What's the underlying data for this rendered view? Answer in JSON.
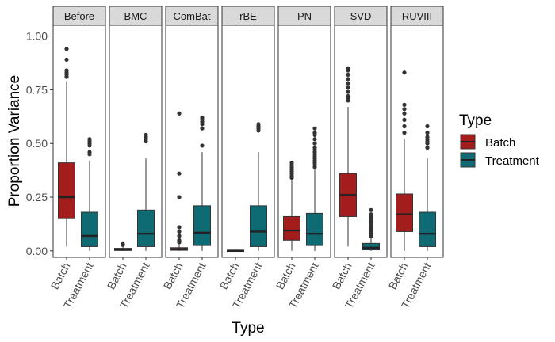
{
  "chart_data": {
    "type": "boxplot",
    "xlabel": "Type",
    "ylabel": "Proportion Variance",
    "ylim": [
      -0.03,
      1.05
    ],
    "yticks": [
      0.0,
      0.25,
      0.5,
      0.75,
      1.0
    ],
    "ytick_labels": [
      "0.00",
      "0.25",
      "0.50",
      "0.75",
      "1.00"
    ],
    "categories": [
      "Batch",
      "Treatment"
    ],
    "legend": {
      "title": "Type",
      "position": "right",
      "entries": [
        {
          "label": "Batch",
          "color": "#a31d1d"
        },
        {
          "label": "Treatment",
          "color": "#0f6b73"
        }
      ]
    },
    "facets": [
      {
        "label": "Before",
        "boxes": [
          {
            "category": "Batch",
            "min": 0.02,
            "q1": 0.15,
            "median": 0.25,
            "q3": 0.41,
            "max": 0.79,
            "outliers": [
              0.81,
              0.82,
              0.83,
              0.84,
              0.89,
              0.94
            ]
          },
          {
            "category": "Treatment",
            "min": 0.0,
            "q1": 0.02,
            "median": 0.07,
            "q3": 0.18,
            "max": 0.42,
            "outliers": [
              0.45,
              0.46,
              0.49,
              0.5,
              0.51,
              0.52
            ]
          }
        ]
      },
      {
        "label": "BMC",
        "boxes": [
          {
            "category": "Batch",
            "min": 0.0,
            "q1": 0.002,
            "median": 0.006,
            "q3": 0.012,
            "max": 0.025,
            "outliers": [
              0.028,
              0.03,
              0.032
            ]
          },
          {
            "category": "Treatment",
            "min": 0.0,
            "q1": 0.02,
            "median": 0.08,
            "q3": 0.19,
            "max": 0.43,
            "outliers": [
              0.51,
              0.52,
              0.53,
              0.54
            ]
          }
        ]
      },
      {
        "label": "ComBat",
        "boxes": [
          {
            "category": "Batch",
            "min": 0.0,
            "q1": 0.003,
            "median": 0.008,
            "q3": 0.015,
            "max": 0.03,
            "outliers": [
              0.04,
              0.05,
              0.07,
              0.09,
              0.11,
              0.25,
              0.36,
              0.64
            ]
          },
          {
            "category": "Treatment",
            "min": 0.0,
            "q1": 0.025,
            "median": 0.085,
            "q3": 0.21,
            "max": 0.46,
            "outliers": [
              0.49,
              0.57,
              0.59,
              0.6,
              0.61,
              0.62
            ]
          }
        ]
      },
      {
        "label": "rBE",
        "boxes": [
          {
            "category": "Batch",
            "min": 0.0,
            "q1": 0.0,
            "median": 0.001,
            "q3": 0.003,
            "max": 0.006,
            "outliers": []
          },
          {
            "category": "Treatment",
            "min": 0.0,
            "q1": 0.02,
            "median": 0.09,
            "q3": 0.21,
            "max": 0.46,
            "outliers": [
              0.56,
              0.57,
              0.58,
              0.59
            ]
          }
        ]
      },
      {
        "label": "PN",
        "boxes": [
          {
            "category": "Batch",
            "min": 0.0,
            "q1": 0.05,
            "median": 0.095,
            "q3": 0.16,
            "max": 0.33,
            "outliers": [
              0.34,
              0.35,
              0.36,
              0.37,
              0.38,
              0.39,
              0.4,
              0.41
            ]
          },
          {
            "category": "Treatment",
            "min": 0.0,
            "q1": 0.025,
            "median": 0.08,
            "q3": 0.175,
            "max": 0.38,
            "outliers": [
              0.39,
              0.4,
              0.41,
              0.42,
              0.43,
              0.44,
              0.45,
              0.46,
              0.47,
              0.48,
              0.5,
              0.52,
              0.54,
              0.55,
              0.57
            ]
          }
        ]
      },
      {
        "label": "SVD",
        "boxes": [
          {
            "category": "Batch",
            "min": 0.02,
            "q1": 0.16,
            "median": 0.26,
            "q3": 0.36,
            "max": 0.67,
            "outliers": [
              0.7,
              0.71,
              0.72,
              0.74,
              0.76,
              0.78,
              0.8,
              0.82,
              0.84,
              0.85
            ]
          },
          {
            "category": "Treatment",
            "min": 0.0,
            "q1": 0.005,
            "median": 0.015,
            "q3": 0.035,
            "max": 0.06,
            "outliers": [
              0.07,
              0.08,
              0.09,
              0.1,
              0.11,
              0.12,
              0.13,
              0.14,
              0.15,
              0.16,
              0.17,
              0.19
            ]
          }
        ]
      },
      {
        "label": "RUVIII",
        "boxes": [
          {
            "category": "Batch",
            "min": 0.0,
            "q1": 0.09,
            "median": 0.17,
            "q3": 0.265,
            "max": 0.52,
            "outliers": [
              0.55,
              0.58,
              0.61,
              0.64,
              0.66,
              0.68,
              0.83
            ]
          },
          {
            "category": "Treatment",
            "min": 0.0,
            "q1": 0.02,
            "median": 0.08,
            "q3": 0.18,
            "max": 0.43,
            "outliers": [
              0.48,
              0.5,
              0.51,
              0.52,
              0.53,
              0.55,
              0.58
            ]
          }
        ]
      }
    ]
  }
}
